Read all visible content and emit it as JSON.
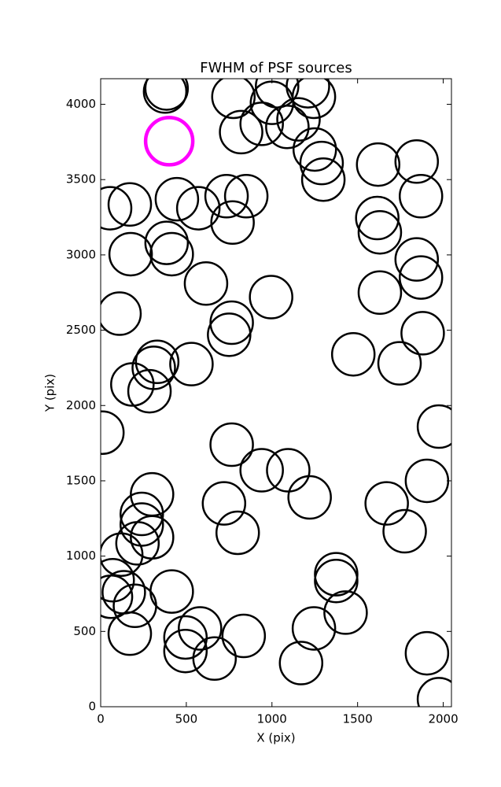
{
  "chart_data": {
    "type": "scatter",
    "title": "FWHM of PSF sources",
    "x_label": "X (pix)",
    "y_label": "Y (pix)",
    "xlim": [
      0,
      2048
    ],
    "ylim": [
      0,
      4170
    ],
    "xticks": [
      0,
      500,
      1000,
      1500,
      2000
    ],
    "yticks": [
      0,
      500,
      1000,
      1500,
      2000,
      2500,
      3000,
      3500,
      4000
    ],
    "marker": "open-circle",
    "series": [
      {
        "color": "#000000",
        "x": [
          376,
          385,
          775,
          1030,
          1000,
          1210,
          1245,
          1155,
          1090,
          940,
          820,
          1250,
          1290,
          1300,
          1620,
          1845,
          1870,
          1615,
          1630,
          1845,
          1870,
          1630,
          1880,
          1475,
          1745,
          1975,
          1905,
          1670,
          1775,
          1375,
          1375,
          1430,
          1245,
          1170,
          1905,
          1975,
          1220,
          1095,
          940,
          765,
          720,
          800,
          995,
          765,
          750,
          615,
          530,
          330,
          310,
          285,
          185,
          110,
          10,
          175,
          415,
          385,
          170,
          55,
          445,
          570,
          735,
          850,
          770,
          300,
          240,
          240,
          300,
          215,
          120,
          70,
          135,
          60,
          200,
          170,
          415,
          495,
          495,
          580,
          665,
          835
        ],
        "values": [
          4085,
          4105,
          4050,
          4120,
          4010,
          4120,
          4050,
          3900,
          3850,
          3870,
          3815,
          3700,
          3610,
          3500,
          3600,
          3620,
          3390,
          3245,
          3150,
          2970,
          2850,
          2750,
          2480,
          2340,
          2280,
          1860,
          1500,
          1350,
          1165,
          880,
          835,
          625,
          520,
          290,
          355,
          50,
          1390,
          1570,
          1570,
          1740,
          1350,
          1155,
          2720,
          2550,
          2470,
          2810,
          2275,
          2290,
          2250,
          2095,
          2140,
          2610,
          1820,
          3005,
          3005,
          3080,
          3335,
          3310,
          3370,
          3310,
          3390,
          3390,
          3215,
          1410,
          1280,
          1210,
          1125,
          1085,
          1010,
          840,
          760,
          730,
          670,
          485,
          765,
          460,
          370,
          520,
          320,
          470
        ]
      },
      {
        "color": "#ff00ff",
        "x": [
          400
        ],
        "values": [
          3755
        ]
      }
    ]
  }
}
